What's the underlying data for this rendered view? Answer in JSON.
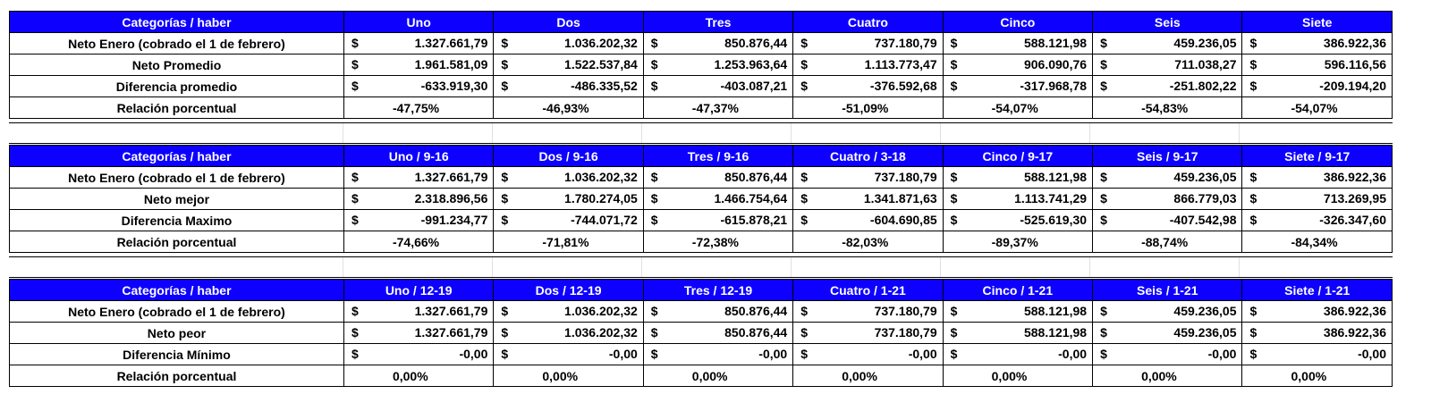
{
  "tables": [
    {
      "header": [
        "Categorías / haber",
        "Uno",
        "Dos",
        "Tres",
        "Cuatro",
        "Cinco",
        "Seis",
        "Siete"
      ],
      "rows": [
        {
          "label": "Neto Enero (cobrado el 1 de febrero)",
          "values": [
            "1.327.661,79",
            "1.036.202,32",
            "850.876,44",
            "737.180,79",
            "588.121,98",
            "459.236,05",
            "386.922,36"
          ]
        },
        {
          "label": "Neto Promedio",
          "values": [
            "1.961.581,09",
            "1.522.537,84",
            "1.253.963,64",
            "1.113.773,47",
            "906.090,76",
            "711.038,27",
            "596.116,56"
          ]
        },
        {
          "label": "Diferencia promedio",
          "values": [
            "-633.919,30",
            "-486.335,52",
            "-403.087,21",
            "-376.592,68",
            "-317.968,78",
            "-251.802,22",
            "-209.194,20"
          ]
        }
      ],
      "percent_row": {
        "label": "Relación porcentual",
        "values": [
          "-47,75%",
          "-46,93%",
          "-47,37%",
          "-51,09%",
          "-54,07%",
          "-54,83%",
          "-54,07%"
        ]
      }
    },
    {
      "header": [
        "Categorías / haber",
        "Uno / 9-16",
        "Dos / 9-16",
        "Tres / 9-16",
        "Cuatro / 3-18",
        "Cinco / 9-17",
        "Seis / 9-17",
        "Siete / 9-17"
      ],
      "rows": [
        {
          "label": "Neto Enero (cobrado el 1 de febrero)",
          "values": [
            "1.327.661,79",
            "1.036.202,32",
            "850.876,44",
            "737.180,79",
            "588.121,98",
            "459.236,05",
            "386.922,36"
          ]
        },
        {
          "label": "Neto mejor",
          "values": [
            "2.318.896,56",
            "1.780.274,05",
            "1.466.754,64",
            "1.341.871,63",
            "1.113.741,29",
            "866.779,03",
            "713.269,95"
          ]
        },
        {
          "label": "Diferencia Maximo",
          "values": [
            "-991.234,77",
            "-744.071,72",
            "-615.878,21",
            "-604.690,85",
            "-525.619,30",
            "-407.542,98",
            "-326.347,60"
          ]
        }
      ],
      "percent_row": {
        "label": "Relación porcentual",
        "values": [
          "-74,66%",
          "-71,81%",
          "-72,38%",
          "-82,03%",
          "-89,37%",
          "-88,74%",
          "-84,34%"
        ]
      }
    },
    {
      "header": [
        "Categorías / haber",
        "Uno / 12-19",
        "Dos / 12-19",
        "Tres / 12-19",
        "Cuatro / 1-21",
        "Cinco / 1-21",
        "Seis / 1-21",
        "Siete / 1-21"
      ],
      "rows": [
        {
          "label": "Neto Enero (cobrado el 1 de febrero)",
          "values": [
            "1.327.661,79",
            "1.036.202,32",
            "850.876,44",
            "737.180,79",
            "588.121,98",
            "459.236,05",
            "386.922,36"
          ]
        },
        {
          "label": "Neto peor",
          "values": [
            "1.327.661,79",
            "1.036.202,32",
            "850.876,44",
            "737.180,79",
            "588.121,98",
            "459.236,05",
            "386.922,36"
          ]
        },
        {
          "label": "Diferencia Mínimo",
          "values": [
            "-0,00",
            "-0,00",
            "-0,00",
            "-0,00",
            "-0,00",
            "-0,00",
            "-0,00"
          ]
        }
      ],
      "percent_row": {
        "label": "Relación porcentual",
        "values": [
          "0,00%",
          "0,00%",
          "0,00%",
          "0,00%",
          "0,00%",
          "0,00%",
          "0,00%"
        ]
      }
    }
  ],
  "currency_symbol": "$",
  "colors": {
    "header_background": "#0d00ff",
    "header_text": "#ffffff",
    "cell_text": "#000000",
    "border": "#000000"
  }
}
